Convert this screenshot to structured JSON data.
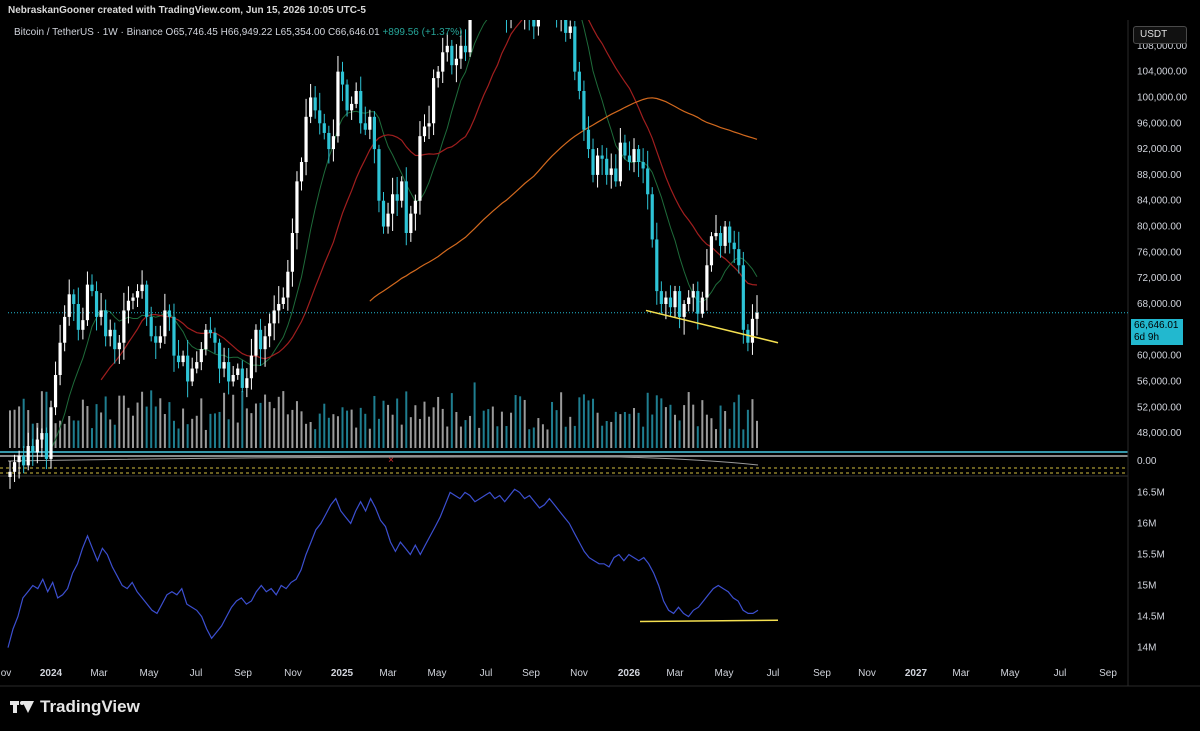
{
  "header": {
    "credit": "NebraskanGooner created with TradingView.com, Jun 15, 2026 10:05 UTC-5"
  },
  "legend": {
    "symbol": "Bitcoin / TetherUS · 1W · Binance",
    "open": "O65,746.45",
    "high": "H66,949.22",
    "low": "L65,354.00",
    "close": "C66,646.01",
    "change": "+899.56 (+1.37%)"
  },
  "currency_button": "USDT",
  "last_price": {
    "value": "66,646.01",
    "countdown": "6d 9h"
  },
  "zero_label": "0.00",
  "brand": {
    "name": "TradingView",
    "logo_icon": "tradingview-logo-icon"
  },
  "colors": {
    "up": "#2ec4d6",
    "down": "#ffffff",
    "ma_short": "#1e6b3a",
    "ma_mid": "#a01e1e",
    "ma_long": "#d2691e",
    "trendline": "#f5e050",
    "volume_line": "#3c4fd0"
  },
  "chart_data": [
    {
      "type": "candlestick",
      "title": "",
      "y_axis_ticks": [
        "108,000.00",
        "104,000.00",
        "100,000.00",
        "96,000.00",
        "92,000.00",
        "88,000.00",
        "84,000.00",
        "80,000.00",
        "76,000.00",
        "72,000.00",
        "68,000.00",
        "64,000.00",
        "60,000.00",
        "56,000.00",
        "52,000.00",
        "48,000.00"
      ],
      "x_axis_ticks": [
        "ov",
        "2024",
        "Mar",
        "May",
        "Jul",
        "Sep",
        "Nov",
        "2025",
        "Mar",
        "May",
        "Jul",
        "Sep",
        "Nov",
        "2026",
        "Mar",
        "May",
        "Jul",
        "Sep",
        "Nov",
        "2027",
        "Mar",
        "May",
        "Jul",
        "Sep"
      ],
      "ylim": [
        46000,
        112000
      ],
      "close_series": [
        42000,
        43500,
        44500,
        43000,
        46000,
        45000,
        47000,
        48000,
        44000,
        52000,
        57000,
        62000,
        66000,
        69500,
        68000,
        64000,
        65500,
        71000,
        70000,
        66000,
        67000,
        63000,
        64000,
        61000,
        62000,
        67000,
        68500,
        69000,
        70000,
        71000,
        66000,
        63000,
        62000,
        63000,
        67000,
        66000,
        60000,
        59000,
        60000,
        56000,
        58000,
        59000,
        61000,
        64000,
        63500,
        62000,
        58000,
        59000,
        56000,
        57000,
        58000,
        55000,
        56500,
        60000,
        64000,
        61000,
        63000,
        65000,
        67000,
        68000,
        69000,
        73000,
        79000,
        87000,
        90000,
        97000,
        100000,
        98000,
        96000,
        94500,
        92000,
        94000,
        104000,
        102000,
        98000,
        99000,
        101000,
        96000,
        95000,
        97000,
        92000,
        84000,
        80000,
        82000,
        85000,
        84000,
        87000,
        79000,
        82000,
        84000,
        94000,
        95500,
        96000,
        103000,
        104000,
        107000,
        108000,
        105000,
        106000,
        108000,
        107000,
        118000,
        117500,
        119000,
        118000,
        117000,
        120000,
        117000,
        118000,
        112000,
        116000,
        115000,
        113000,
        116000,
        113000,
        111000,
        122000,
        123000,
        124000,
        115000,
        112000,
        113000,
        110000,
        111000,
        104000,
        101000,
        95000,
        92000,
        88000,
        91000,
        90500,
        88000,
        89000,
        87000,
        93000,
        91000,
        90000,
        92000,
        90000,
        89000,
        85000,
        78000,
        70000,
        68000,
        69000,
        67500,
        70000,
        66000,
        68000,
        69000,
        70000,
        66500,
        69000,
        74000,
        78500,
        79000,
        77000,
        80000,
        77500,
        76500,
        74000,
        64000,
        62000,
        65700,
        66646
      ],
      "indicators": [
        {
          "name": "ma-short"
        },
        {
          "name": "ma-mid"
        },
        {
          "name": "ma-long"
        }
      ],
      "trendline": {
        "from": {
          "x": "Feb 2026",
          "y": 67000
        },
        "to": {
          "x": "Jun 2026",
          "y": 62000
        }
      }
    },
    {
      "type": "line",
      "title": "",
      "y_axis_ticks": [
        "16.5M",
        "16M",
        "15.5M",
        "15M",
        "14.5M",
        "14M"
      ],
      "ylim": [
        13800000,
        16700000
      ],
      "series": [
        {
          "values": [
            14000000,
            14300000,
            14500000,
            14800000,
            14900000,
            15000000,
            14950000,
            15100000,
            14900000,
            15050000,
            14800000,
            14850000,
            14950000,
            15200000,
            15350000,
            15600000,
            15800000,
            15600000,
            15400000,
            15600000,
            15500000,
            15300000,
            15150000,
            15000000,
            14950000,
            15050000,
            14900000,
            14800000,
            14700000,
            14600000,
            14550000,
            14700000,
            14850000,
            14900000,
            14850000,
            14950000,
            14700000,
            14650000,
            14600000,
            14500000,
            14300000,
            14150000,
            14250000,
            14350000,
            14500000,
            14650000,
            14750000,
            14800000,
            14700000,
            14750000,
            14900000,
            15000000,
            14900000,
            14950000,
            14850000,
            15000000,
            14950000,
            15050000,
            15100000,
            15250000,
            15500000,
            15700000,
            15900000,
            16000000,
            16150000,
            16300000,
            16400000,
            16200000,
            16100000,
            16000000,
            16200000,
            16350000,
            16200000,
            16400000,
            16250000,
            16050000,
            15950000,
            15700000,
            15550000,
            15700000,
            15600000,
            15500000,
            15650000,
            15500000,
            15650000,
            15800000,
            15950000,
            16100000,
            16300000,
            16500000,
            16450000,
            16400000,
            16500000,
            16450000,
            16350000,
            16400000,
            16450000,
            16500000,
            16400000,
            16450000,
            16350000,
            16450000,
            16550000,
            16500000,
            16400000,
            16450000,
            16350000,
            16250000,
            16300000,
            16400000,
            16300000,
            16200000,
            16100000,
            16000000,
            15850000,
            15700000,
            15550000,
            15450000,
            15400000,
            15350000,
            15350000,
            15300000,
            15450000,
            15500000,
            15400000,
            15500000,
            15450000,
            15400000,
            15450000,
            15350000,
            15200000,
            15000000,
            14750000,
            14600000,
            14550000,
            14650000,
            14550000,
            14500000,
            14600000,
            14650000,
            14750000,
            14850000,
            14950000,
            15000000,
            14950000,
            14900000,
            14800000,
            14750000,
            14600000,
            14550000,
            14550000,
            14600000
          ]
        }
      ],
      "trendline": {
        "from": {
          "x": "Feb 2026",
          "y": 14420000
        },
        "to": {
          "x": "Jul 2026",
          "y": 14440000
        }
      }
    }
  ]
}
